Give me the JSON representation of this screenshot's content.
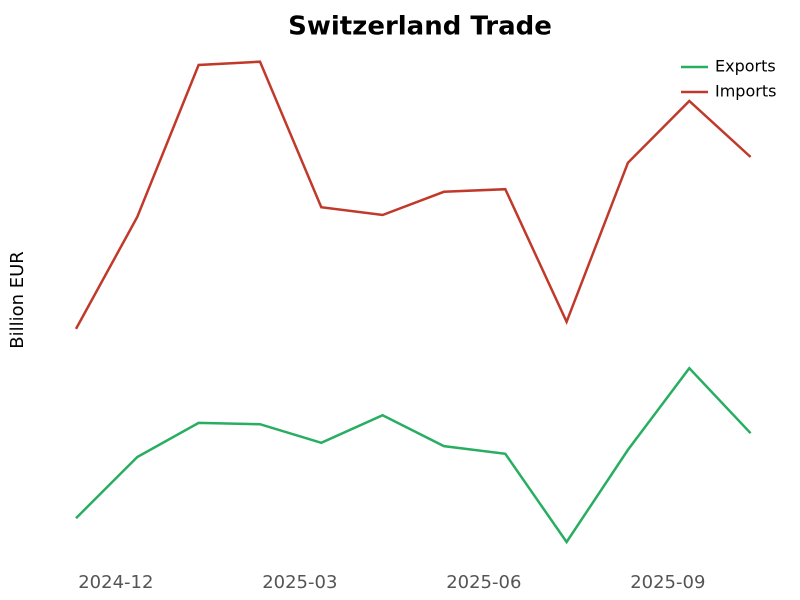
{
  "chart_data": {
    "type": "line",
    "title": "Switzerland Trade",
    "ylabel": "Billion EUR",
    "x": [
      "2024-11",
      "2024-12",
      "2025-01",
      "2025-02",
      "2025-03",
      "2025-04",
      "2025-05",
      "2025-06",
      "2025-07",
      "2025-08",
      "2025-09",
      "2025-10"
    ],
    "xticks": [
      "2024-12",
      "2025-03",
      "2025-06",
      "2025-09"
    ],
    "ylim": [
      18,
      26
    ],
    "legend": "upper right",
    "series": [
      {
        "name": "Exports",
        "color": "#27ae60",
        "values": [
          18.65,
          19.6,
          20.13,
          20.11,
          19.82,
          20.25,
          19.77,
          19.65,
          18.28,
          19.71,
          20.98,
          19.97
        ]
      },
      {
        "name": "Imports",
        "color": "#c0392b",
        "values": [
          21.59,
          23.33,
          25.69,
          25.74,
          23.48,
          23.36,
          23.72,
          23.76,
          21.7,
          24.17,
          25.13,
          24.26
        ]
      }
    ]
  }
}
